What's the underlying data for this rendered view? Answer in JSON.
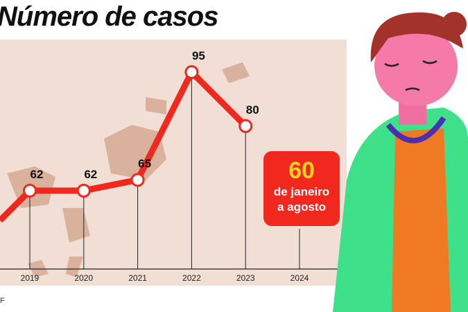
{
  "title": "Número de casos",
  "source": "F",
  "badge": {
    "value": "60",
    "line1": "de janeiro",
    "line2": "a agosto"
  },
  "colors": {
    "line": "#f0281e",
    "background": "#f1ded4",
    "map": "#d9b19d",
    "badge": "#f0281e",
    "badge_value": "#ffd21f"
  },
  "chart_data": {
    "type": "line",
    "title": "Número de casos",
    "categories": [
      "2019",
      "2020",
      "2021",
      "2022",
      "2023",
      "2024"
    ],
    "values": [
      62,
      62,
      65,
      95,
      80,
      null
    ],
    "labels": [
      "62",
      "62",
      "65",
      "95",
      "80",
      ""
    ],
    "grid": false,
    "annotation": "60 de janeiro a agosto (2024)"
  }
}
